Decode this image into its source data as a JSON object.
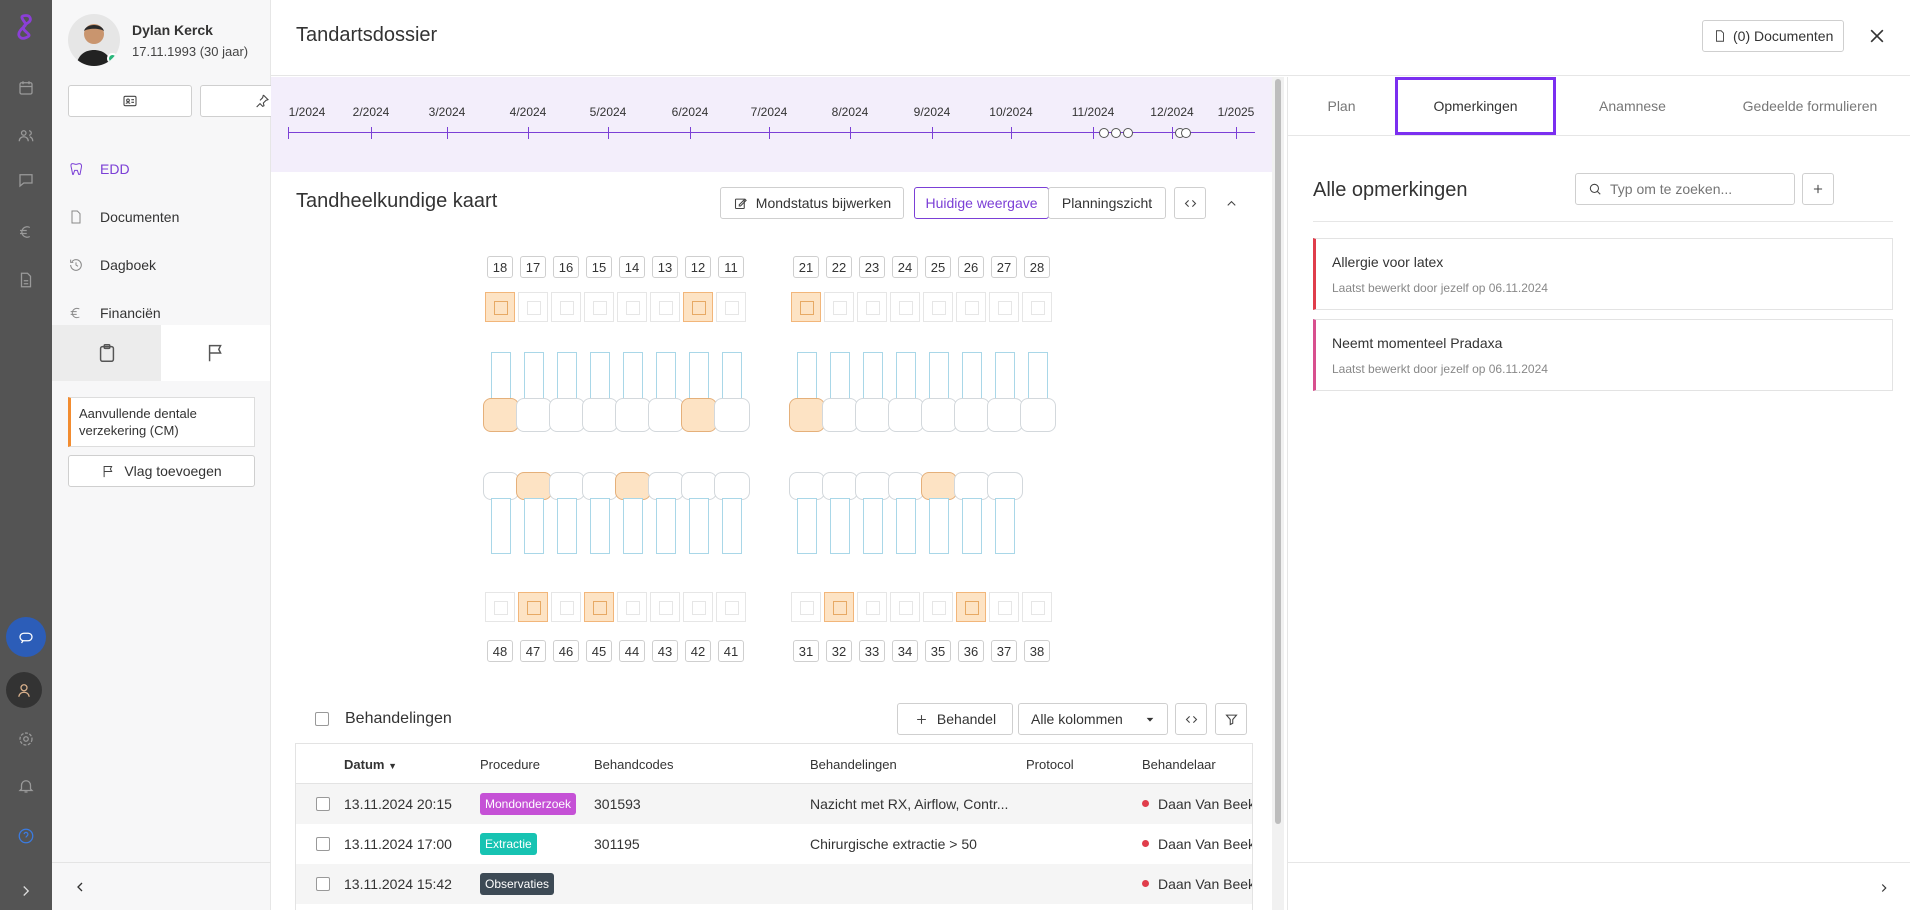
{
  "patient": {
    "name": "Dylan Kerck",
    "dob": "17.11.1993 (30 jaar)"
  },
  "nav": {
    "items": [
      {
        "label": "EDD",
        "icon": "tooth-icon",
        "active": true
      },
      {
        "label": "Documenten",
        "icon": "document-icon"
      },
      {
        "label": "Dagboek",
        "icon": "history-icon"
      },
      {
        "label": "Financiën",
        "icon": "euro-icon"
      }
    ]
  },
  "flag": {
    "text": "Aanvullende dentale verzekering (CM)",
    "add_label": "Vlag toevoegen"
  },
  "header": {
    "title": "Tandartsdossier",
    "docs_label": "(0) Documenten"
  },
  "timeline": {
    "labels": [
      "1/2024",
      "2/2024",
      "3/2024",
      "4/2024",
      "5/2024",
      "6/2024",
      "7/2024",
      "8/2024",
      "9/2024",
      "10/2024",
      "11/2024",
      "12/2024",
      "1/2025"
    ]
  },
  "chart": {
    "title": "Tandheelkundige kaart",
    "mondstatus_label": "Mondstatus bijwerken",
    "current_label": "Huidige weergave",
    "plan_label": "Planningszicht",
    "upper_right": [
      "18",
      "17",
      "16",
      "15",
      "14",
      "13",
      "12",
      "11"
    ],
    "upper_left": [
      "21",
      "22",
      "23",
      "24",
      "25",
      "26",
      "27",
      "28"
    ],
    "lower_right": [
      "48",
      "47",
      "46",
      "45",
      "44",
      "43",
      "42",
      "41"
    ],
    "lower_left": [
      "31",
      "32",
      "33",
      "34",
      "35",
      "36",
      "37",
      "38"
    ]
  },
  "treatments": {
    "title": "Behandelingen",
    "add_label": "Behandel",
    "columns_label": "Alle kolommen",
    "headers": [
      "Datum",
      "Procedure",
      "Behandcodes",
      "Behandelingen",
      "Protocol",
      "Behandelaar"
    ],
    "rows": [
      {
        "date": "13.11.2024 20:15",
        "procedure": "Mondonderzoek",
        "color": "#c551d6",
        "code": "301593",
        "treatment": "Nazicht met RX, Airflow, Contr...",
        "protocol": "",
        "dentist": "Daan Van Beek"
      },
      {
        "date": "13.11.2024 17:00",
        "procedure": "Extractie",
        "color": "#17c3b2",
        "code": "301195",
        "treatment": "Chirurgische extractie > 50",
        "protocol": "",
        "dentist": "Daan Van Beek"
      },
      {
        "date": "13.11.2024 15:42",
        "procedure": "Observaties",
        "color": "#3d4a55",
        "code": "",
        "treatment": "",
        "protocol": "",
        "dentist": "Daan Van Beek"
      }
    ]
  },
  "right": {
    "tabs": [
      "Plan",
      "Opmerkingen",
      "Anamnese",
      "Gedeelde formulieren"
    ],
    "active_tab": "Opmerkingen",
    "title": "Alle opmerkingen",
    "search_placeholder": "Typ om te zoeken...",
    "notes": [
      {
        "title": "Allergie voor latex",
        "sub": "Laatst bewerkt door jezelf op 06.11.2024"
      },
      {
        "title": "Neemt momenteel Pradaxa",
        "sub": "Laatst bewerkt door jezelf op 06.11.2024"
      }
    ]
  },
  "accent": "#7b3fd6"
}
